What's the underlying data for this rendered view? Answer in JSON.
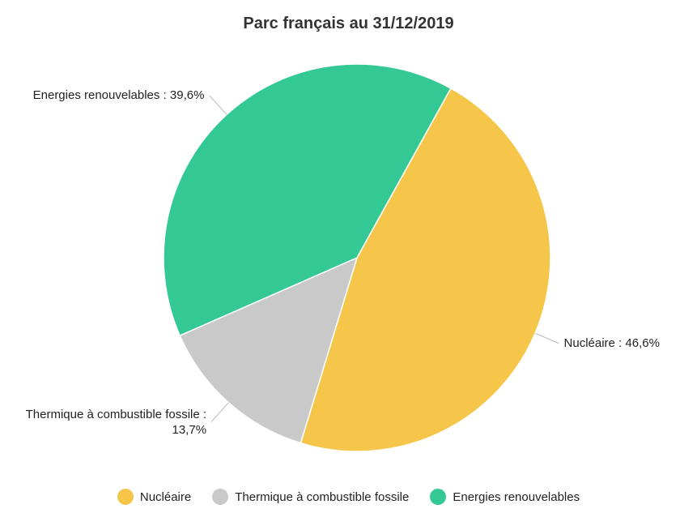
{
  "chart_data": {
    "type": "pie",
    "title": "Parc français au 31/12/2019",
    "categories": [
      "Nucléaire",
      "Thermique à combustible fossile",
      "Energies renouvelables"
    ],
    "values": [
      46.6,
      13.7,
      39.6
    ],
    "value_labels": [
      "Nucléaire : 46,6%",
      "Thermique à combustible fossile : 13,7%",
      "Energies renouvelables : 39,6%"
    ],
    "colors": [
      "#f5c64a",
      "#c9c9c9",
      "#34c994"
    ],
    "legend": "bottom"
  }
}
